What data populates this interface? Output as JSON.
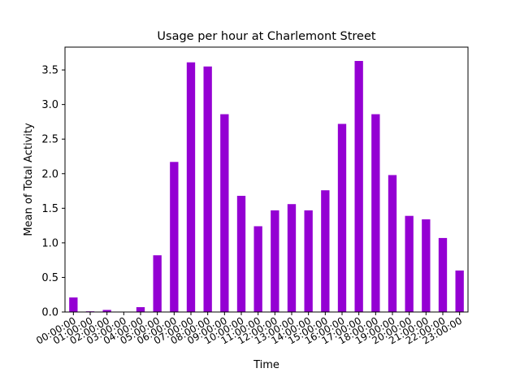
{
  "chart_data": {
    "type": "bar",
    "title": "Usage per hour at Charlemont Street",
    "xlabel": "Time",
    "ylabel": "Mean of Total Activity",
    "categories": [
      "00:00:00",
      "01:00:00",
      "02:00:00",
      "03:00:00",
      "04:00:00",
      "05:00:00",
      "06:00:00",
      "07:00:00",
      "08:00:00",
      "09:00:00",
      "10:00:00",
      "11:00:00",
      "12:00:00",
      "13:00:00",
      "14:00:00",
      "15:00:00",
      "16:00:00",
      "17:00:00",
      "18:00:00",
      "19:00:00",
      "20:00:00",
      "21:00:00",
      "22:00:00",
      "23:00:00"
    ],
    "values": [
      0.21,
      0.01,
      0.03,
      0.0,
      0.07,
      0.82,
      2.17,
      3.61,
      3.55,
      2.86,
      1.68,
      1.24,
      1.47,
      1.56,
      1.47,
      1.76,
      2.72,
      3.63,
      2.86,
      1.98,
      1.39,
      1.34,
      1.07,
      0.6
    ],
    "ylim": [
      0,
      3.83
    ],
    "yticks": [
      0.0,
      0.5,
      1.0,
      1.5,
      2.0,
      2.5,
      3.0,
      3.5
    ],
    "ytick_labels": [
      "0.0",
      "0.5",
      "1.0",
      "1.5",
      "2.0",
      "2.5",
      "3.0",
      "3.5"
    ],
    "grid": false,
    "bar_color": "#9400d3"
  }
}
